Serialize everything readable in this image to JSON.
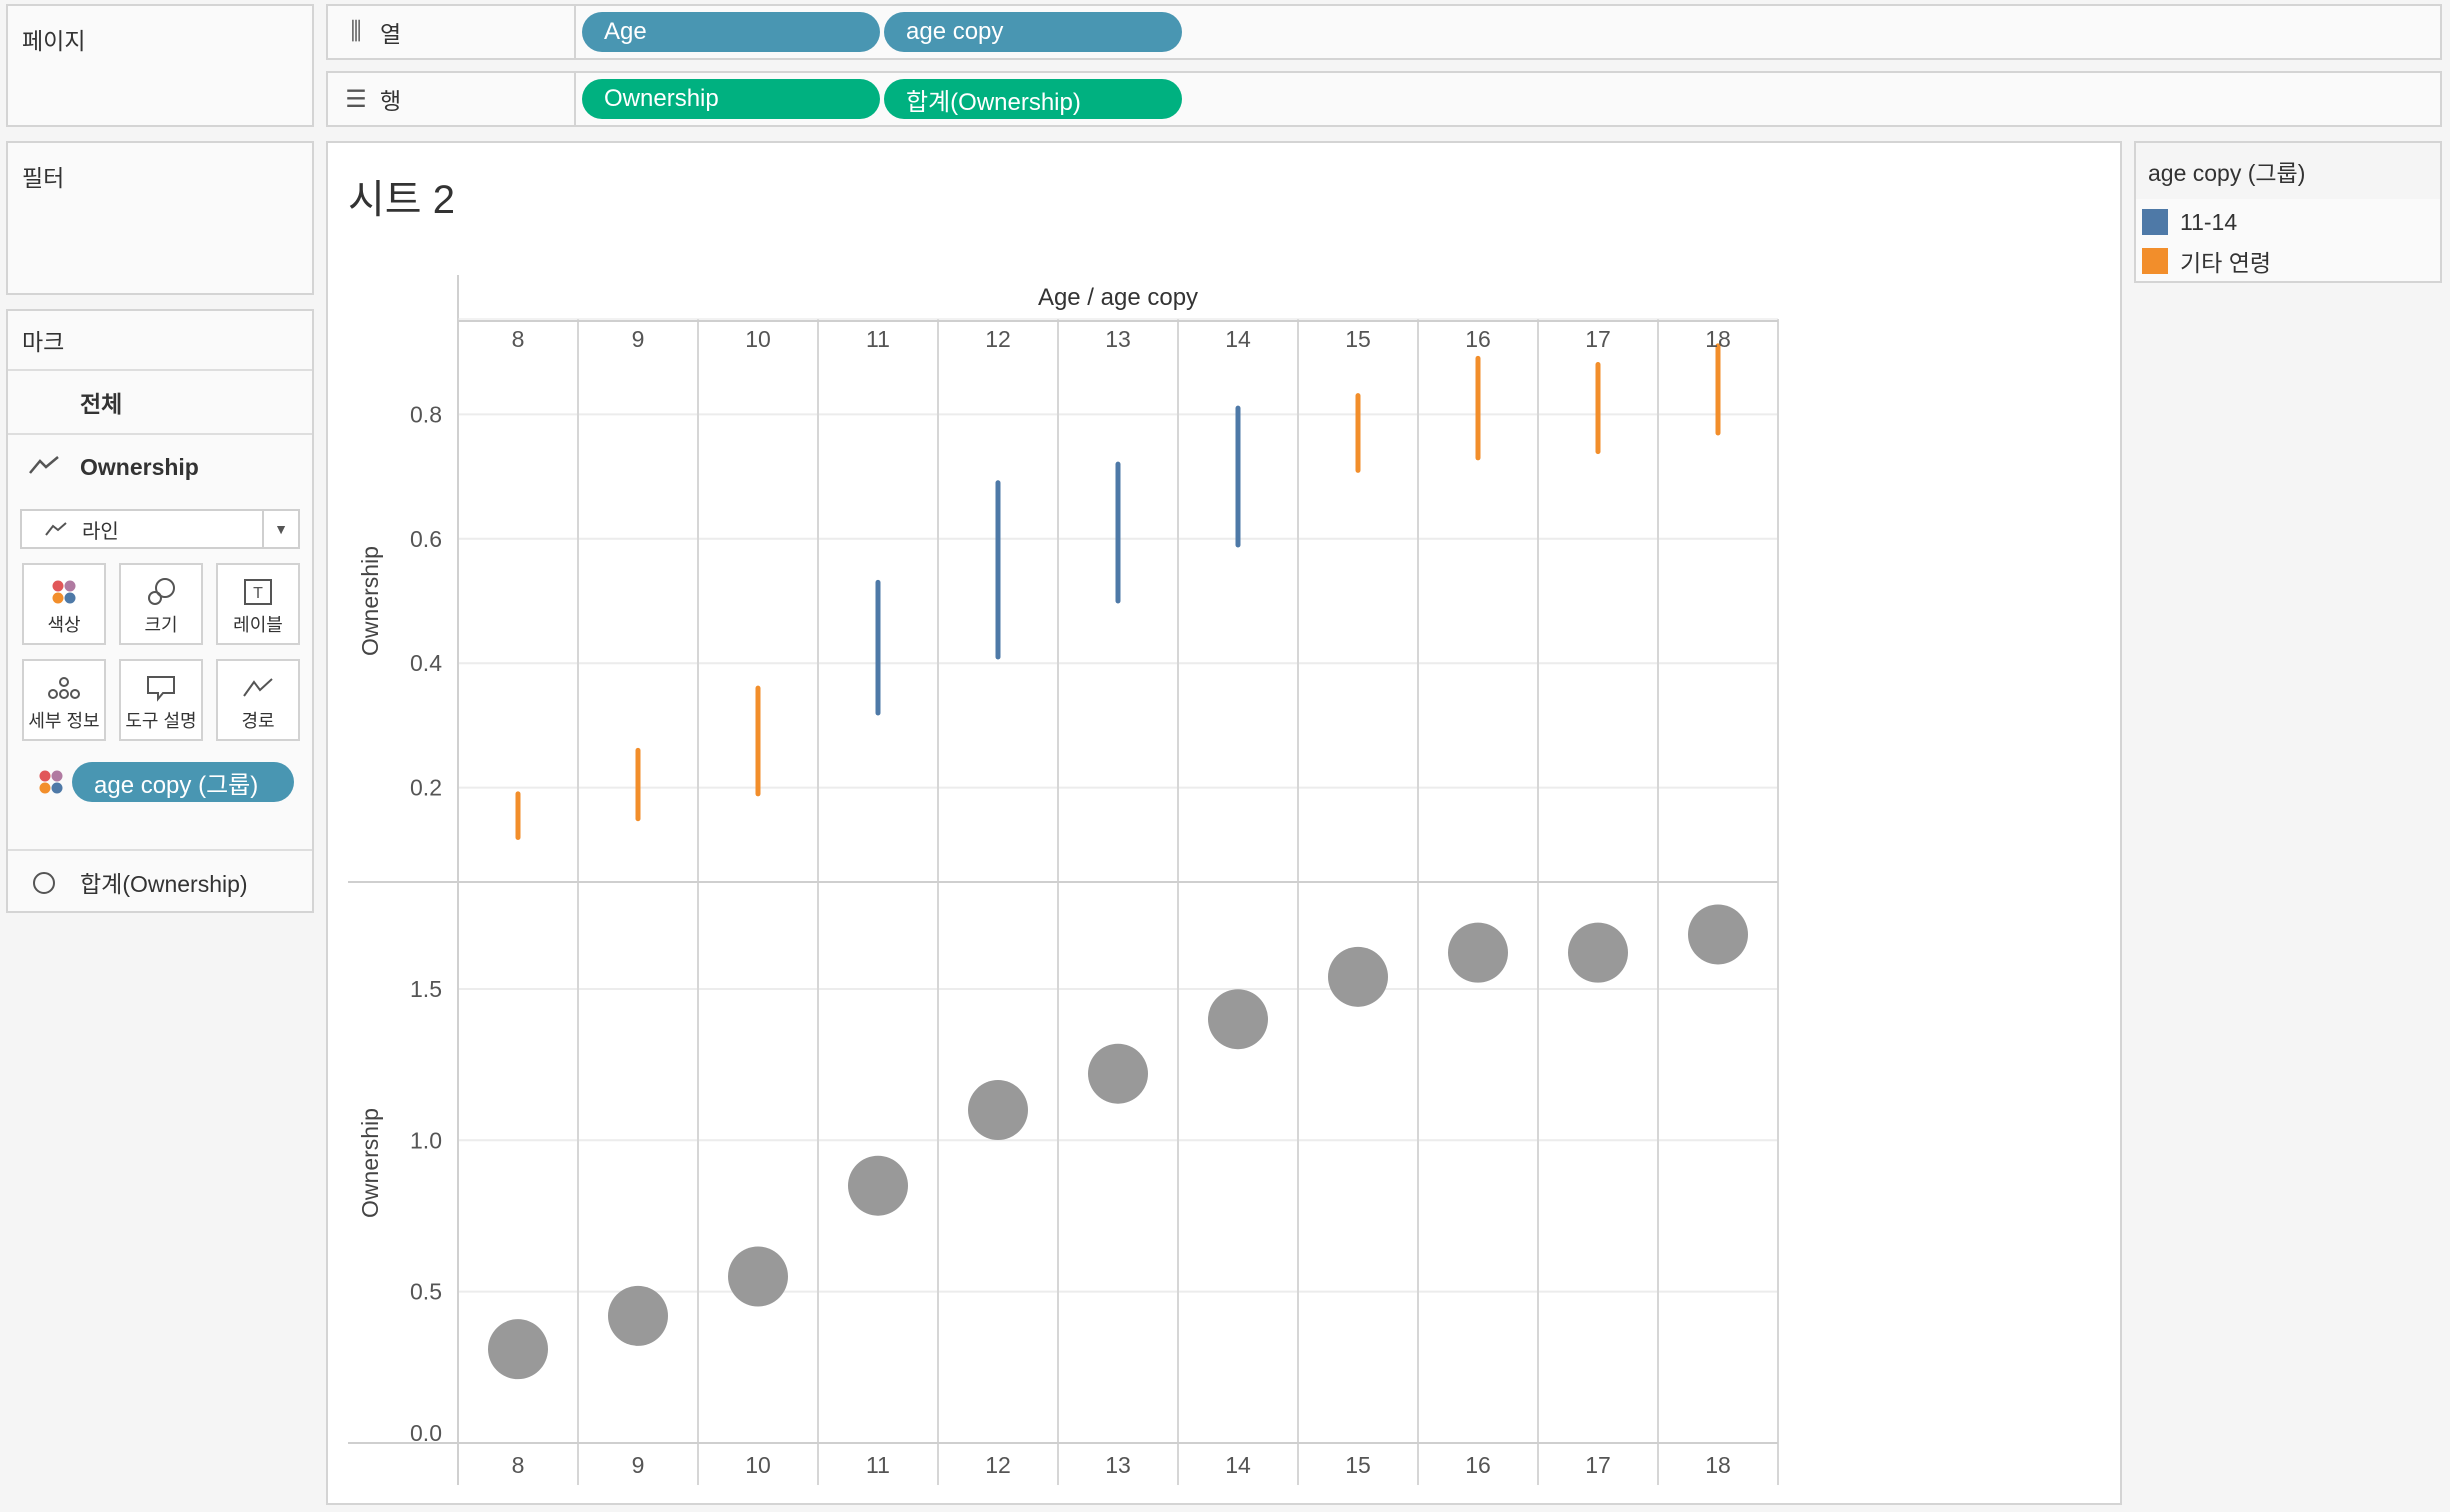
{
  "left_panels": {
    "pages_label": "페이지",
    "filters_label": "필터",
    "marks_label": "마크"
  },
  "shelves": {
    "columns_label": "열",
    "rows_label": "행",
    "columns_pills": [
      "Age",
      "age copy"
    ],
    "rows_pills": [
      "Ownership",
      "합계(Ownership)"
    ]
  },
  "marks": {
    "all_label": "전체",
    "ownership_label": "Ownership",
    "mark_type": "라인",
    "buttons": [
      "색상",
      "크기",
      "레이블",
      "세부 정보",
      "도구 설명",
      "경로"
    ],
    "color_pill": "age copy (그룹)",
    "sum_label": "합계(Ownership)"
  },
  "sheet_title": "시트 2",
  "legend": {
    "title": "age copy (그룹)",
    "items": [
      {
        "label": "11-14",
        "color": "#4e79a7"
      },
      {
        "label": "기타 연령",
        "color": "#f28e2b"
      }
    ]
  },
  "chart_data": [
    {
      "type": "bar",
      "subtype": "range-line",
      "header_title": "Age / age copy",
      "categories": [
        "8",
        "9",
        "10",
        "11",
        "12",
        "13",
        "14",
        "15",
        "16",
        "17",
        "18"
      ],
      "ylabel": "Ownership",
      "ylim": [
        0.05,
        0.95
      ],
      "yticks": [
        0.2,
        0.4,
        0.6,
        0.8
      ],
      "ytick_labels": [
        "0.2",
        "0.4",
        "0.6",
        "0.8"
      ],
      "series": [
        {
          "name": "11-14",
          "color": "#4e79a7",
          "ranges": [
            null,
            null,
            null,
            [
              0.32,
              0.53
            ],
            [
              0.41,
              0.69
            ],
            [
              0.5,
              0.72
            ],
            [
              0.59,
              0.81
            ],
            null,
            null,
            null,
            null
          ]
        },
        {
          "name": "기타 연령",
          "color": "#f28e2b",
          "ranges": [
            [
              0.12,
              0.19
            ],
            [
              0.15,
              0.26
            ],
            [
              0.19,
              0.36
            ],
            null,
            null,
            null,
            null,
            [
              0.71,
              0.83
            ],
            [
              0.73,
              0.89
            ],
            [
              0.74,
              0.88
            ],
            [
              0.77,
              0.91
            ]
          ]
        }
      ],
      "grid": true
    },
    {
      "type": "scatter",
      "categories": [
        "8",
        "9",
        "10",
        "11",
        "12",
        "13",
        "14",
        "15",
        "16",
        "17",
        "18"
      ],
      "ylabel": "Ownership",
      "ylim": [
        0.0,
        1.85
      ],
      "yticks": [
        0.0,
        0.5,
        1.0,
        1.5
      ],
      "ytick_labels": [
        "0.0",
        "0.5",
        "1.0",
        "1.5"
      ],
      "values": [
        0.31,
        0.42,
        0.55,
        0.85,
        1.1,
        1.22,
        1.4,
        1.54,
        1.62,
        1.62,
        1.68
      ],
      "color": "#999999",
      "grid": true
    }
  ]
}
